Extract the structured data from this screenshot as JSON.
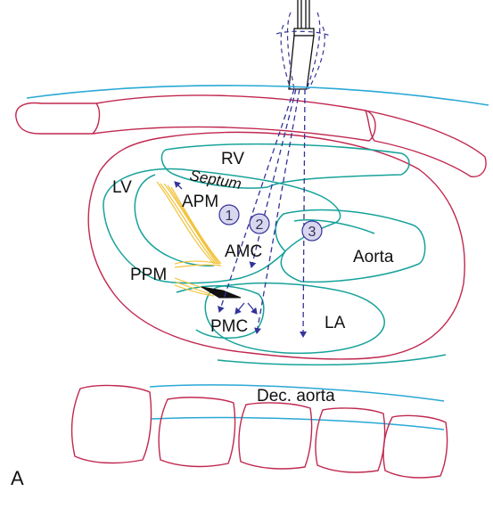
{
  "labels": {
    "rv": "RV",
    "septum": "Septum",
    "lv": "LV",
    "apm": "APM",
    "amc": "AMC",
    "aorta": "Aorta",
    "ppm": "PPM",
    "pmc": "PMC",
    "la": "LA",
    "dec_aorta": "Dec. aorta",
    "panel": "A"
  },
  "beam_numbers": [
    "1",
    "2",
    "3"
  ],
  "colors": {
    "skin_line": "#29a8d6",
    "ribs_and_pericardium": "#c0284f",
    "heart_walls": "#17a29a",
    "papillary_chordae": "#f2c23a",
    "beams": "#33339a",
    "circle_fill": "#d9d6ef"
  }
}
